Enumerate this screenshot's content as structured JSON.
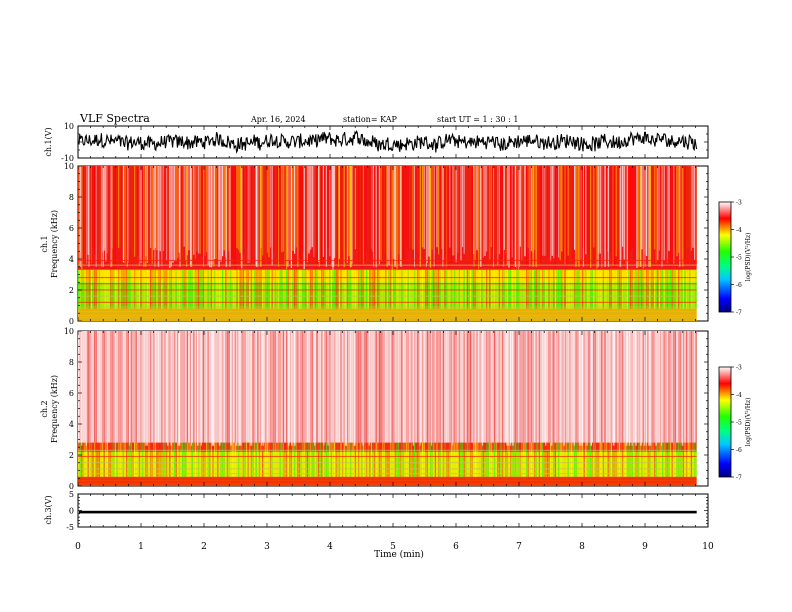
{
  "header": {
    "title": "VLF Spectra",
    "date": "Apr. 16, 2024",
    "station": "station= KAP",
    "start": "start  UT =   1 : 30 : 1"
  },
  "chart_data": [
    {
      "type": "line",
      "panel": "ch1-waveform",
      "ylabel": "ch.1(V)",
      "ylim": [
        -10,
        10
      ],
      "y_ticks": [
        "10",
        "-10"
      ],
      "xlim": [
        0,
        10
      ],
      "data_end_min": 9.82,
      "description_values": {
        "typical_mean_V": 0,
        "typical_amplitude_V": 8
      }
    },
    {
      "type": "heatmap",
      "panel": "ch1-spectrogram",
      "ylabel_line1": "ch.1",
      "ylabel_line2": "Frequency  (kHz)",
      "ylim": [
        0,
        10
      ],
      "y_ticks": [
        "0",
        "2",
        "4",
        "6",
        "8",
        "10"
      ],
      "xlim": [
        0,
        10
      ],
      "data_end_min": 9.82,
      "colorbar": {
        "label": "log(PSD)(V²/Hz)",
        "range": [
          -7,
          -3
        ],
        "ticks": [
          "-3",
          "-4",
          "-5",
          "-6",
          "-7"
        ],
        "colors": [
          "#000080",
          "#0000ff",
          "#00c8ff",
          "#00ff80",
          "#20ff00",
          "#ffff00",
          "#ff0000",
          "#ffffff"
        ]
      }
    },
    {
      "type": "heatmap",
      "panel": "ch2-spectrogram",
      "ylabel_line1": "ch.2",
      "ylabel_line2": "Frequency  (kHz)",
      "ylim": [
        0,
        10
      ],
      "y_ticks": [
        "0",
        "2",
        "4",
        "6",
        "8",
        "10"
      ],
      "xlim": [
        0,
        10
      ],
      "data_end_min": 9.82,
      "colorbar": {
        "label": "log(PSD)(V²/Hz)",
        "range": [
          -7,
          -3
        ],
        "ticks": [
          "-3",
          "-4",
          "-5",
          "-6",
          "-7"
        ],
        "colors": [
          "#000080",
          "#0000ff",
          "#00c8ff",
          "#00ff80",
          "#20ff00",
          "#ffff00",
          "#ff0000",
          "#ffffff"
        ]
      }
    },
    {
      "type": "line",
      "panel": "ch3-waveform",
      "ylabel": "ch.3(V)",
      "ylim": [
        -5,
        5
      ],
      "y_ticks": [
        "5",
        "0",
        "-5"
      ],
      "xlim": [
        0,
        10
      ],
      "data_end_min": 9.82,
      "description_values": {
        "typical_mean_V": -0.5,
        "typical_amplitude_V": 0.4
      }
    }
  ],
  "xaxis": {
    "label": "Time  (min)",
    "ticks": [
      "0",
      "1",
      "2",
      "3",
      "4",
      "5",
      "6",
      "7",
      "8",
      "9",
      "10"
    ]
  }
}
